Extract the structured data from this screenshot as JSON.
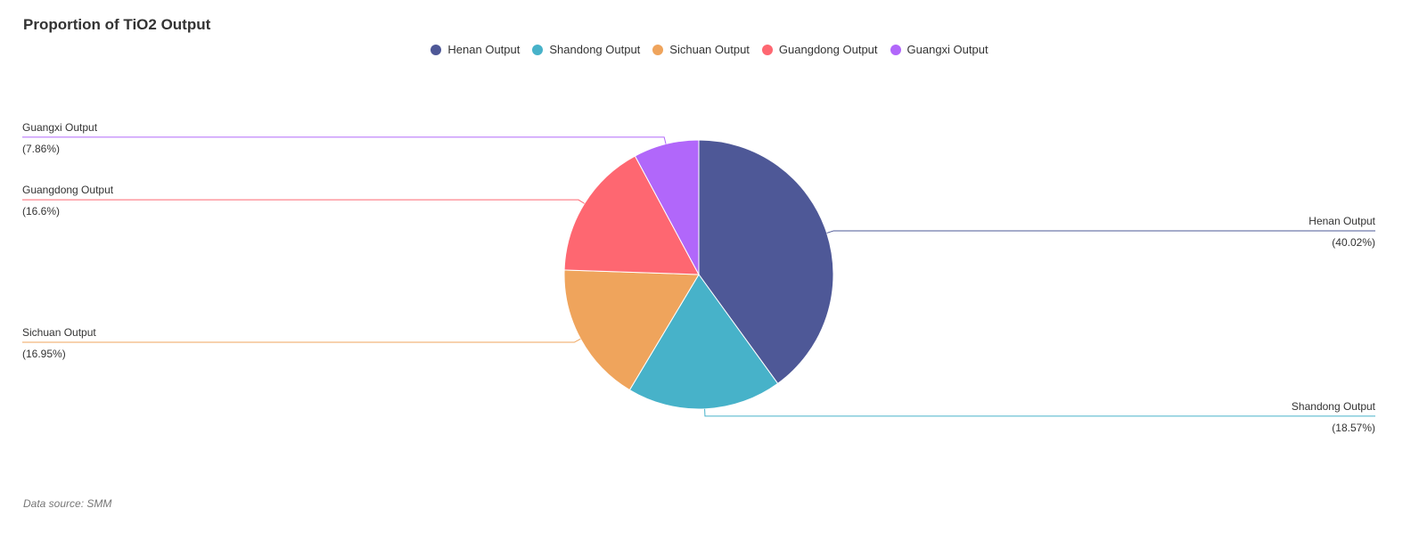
{
  "title": "Proportion of TiO2 Output",
  "source": "Data source: SMM",
  "colors": {
    "Henan Output": "#4e5897",
    "Shandong Output": "#47b2c9",
    "Sichuan Output": "#efa45c",
    "Guangdong Output": "#fe6771",
    "Guangxi Output": "#b167fa"
  },
  "chart_data": {
    "type": "pie",
    "title": "Proportion of TiO2 Output",
    "legend_position": "top-center",
    "slices": [
      {
        "name": "Henan Output",
        "value": 40.02,
        "label": "(40.02%)"
      },
      {
        "name": "Shandong Output",
        "value": 18.57,
        "label": "(18.57%)"
      },
      {
        "name": "Sichuan Output",
        "value": 16.95,
        "label": "(16.95%)"
      },
      {
        "name": "Guangdong Output",
        "value": 16.6,
        "label": "(16.6%)"
      },
      {
        "name": "Guangxi Output",
        "value": 7.86,
        "label": "(7.86%)"
      }
    ]
  }
}
